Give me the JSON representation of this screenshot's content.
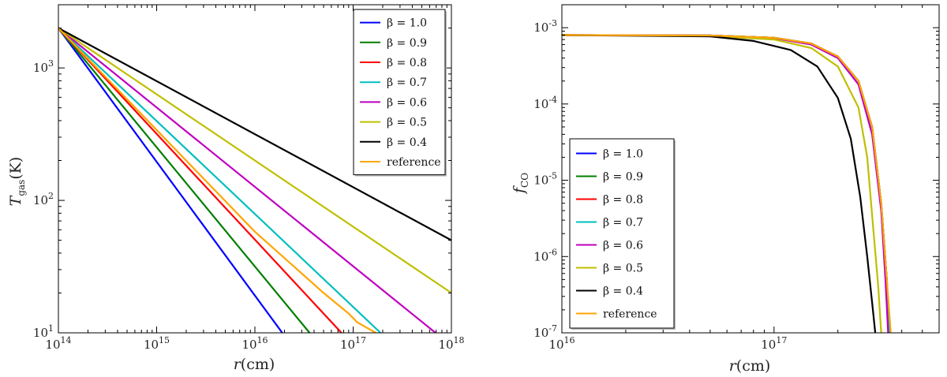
{
  "chart_data": [
    {
      "type": "line",
      "xlabel_main": "r",
      "xlabel_unit": "(cm)",
      "ylabel_main": "T",
      "ylabel_sub": "gas",
      "ylabel_unit": "(K)",
      "x_scale": "log",
      "y_scale": "log",
      "xlim": [
        100000000000000.0,
        1e+18
      ],
      "ylim": [
        10,
        3000
      ],
      "x_ticks": [
        {
          "value": 100000000000000.0,
          "base": "10",
          "exp": "14"
        },
        {
          "value": 1000000000000000.0,
          "base": "10",
          "exp": "15"
        },
        {
          "value": 1e+16,
          "base": "10",
          "exp": "16"
        },
        {
          "value": 1e+17,
          "base": "10",
          "exp": "17"
        },
        {
          "value": 1e+18,
          "base": "10",
          "exp": "18"
        }
      ],
      "y_ticks": [
        {
          "value": 10,
          "base": "10",
          "exp": "1"
        },
        {
          "value": 100,
          "base": "10",
          "exp": "2"
        },
        {
          "value": 1000,
          "base": "10",
          "exp": "3"
        }
      ],
      "grid": false,
      "legend_position": "top-right",
      "series": [
        {
          "name": "β = 1.0",
          "color": "#0000ff",
          "x": [
            100000000000000.0,
            1.9e+16
          ],
          "y": [
            2000,
            10
          ]
        },
        {
          "name": "β = 0.9",
          "color": "#007f00",
          "x": [
            100000000000000.0,
            3.6e+16
          ],
          "y": [
            2000,
            10
          ]
        },
        {
          "name": "β = 0.8",
          "color": "#ff0000",
          "x": [
            100000000000000.0,
            7.6e+16
          ],
          "y": [
            2000,
            10
          ]
        },
        {
          "name": "β = 0.7",
          "color": "#00bfbf",
          "x": [
            100000000000000.0,
            1.9e+17
          ],
          "y": [
            2000,
            10
          ]
        },
        {
          "name": "β = 0.6",
          "color": "#bf00bf",
          "x": [
            100000000000000.0,
            6.9e+17
          ],
          "y": [
            2000,
            10
          ]
        },
        {
          "name": "β = 0.5",
          "color": "#bfbf00",
          "x": [
            100000000000000.0,
            1e+18
          ],
          "y": [
            2000,
            20
          ]
        },
        {
          "name": "β = 0.4",
          "color": "#000000",
          "x": [
            100000000000000.0,
            1e+18
          ],
          "y": [
            2000,
            50
          ]
        },
        {
          "name": "reference",
          "color": "#ffa500",
          "x": [
            100000000000000.0,
            1000000000000000.0,
            1e+16,
            5e+16,
            9e+16,
            1.1e+17,
            1.7e+17
          ],
          "y": [
            2000,
            340,
            58,
            20,
            14,
            12,
            10
          ]
        }
      ]
    },
    {
      "type": "line",
      "xlabel_main": "r",
      "xlabel_unit": "(cm)",
      "ylabel_main": "f",
      "ylabel_sub": "CO",
      "x_scale": "log",
      "y_scale": "log",
      "xlim": [
        1e+16,
        6e+17
      ],
      "ylim": [
        1e-07,
        0.002
      ],
      "x_ticks": [
        {
          "value": 1e+16,
          "base": "10",
          "exp": "16"
        },
        {
          "value": 1e+17,
          "base": "10",
          "exp": "17"
        }
      ],
      "y_ticks": [
        {
          "value": 1e-07,
          "base": "10",
          "exp": "-7"
        },
        {
          "value": 1e-06,
          "base": "10",
          "exp": "-6"
        },
        {
          "value": 1e-05,
          "base": "10",
          "exp": "-5"
        },
        {
          "value": 0.0001,
          "base": "10",
          "exp": "-4"
        },
        {
          "value": 0.001,
          "base": "10",
          "exp": "-3"
        }
      ],
      "grid": false,
      "legend_position": "bottom-left",
      "series": [
        {
          "name": "β = 1.0",
          "color": "#0000ff",
          "x": [
            1e+16,
            5e+16,
            1e+17,
            1.5e+17,
            2e+17,
            2.5e+17,
            2.9e+17,
            3.2e+17,
            3.4e+17,
            3.5e+17
          ],
          "y": [
            0.0008,
            0.00079,
            0.00074,
            0.00062,
            0.00042,
            0.0002,
            5e-05,
            5e-06,
            5e-07,
            1e-07
          ]
        },
        {
          "name": "β = 0.9",
          "color": "#007f00",
          "x": [
            1e+16,
            5e+16,
            1e+17,
            1.5e+17,
            2e+17,
            2.5e+17,
            2.9e+17,
            3.2e+17,
            3.4e+17,
            3.5e+17
          ],
          "y": [
            0.0008,
            0.00079,
            0.00074,
            0.00062,
            0.00042,
            0.0002,
            5e-05,
            5e-06,
            5e-07,
            1e-07
          ]
        },
        {
          "name": "β = 0.8",
          "color": "#ff0000",
          "x": [
            1e+16,
            5e+16,
            1e+17,
            1.5e+17,
            2e+17,
            2.5e+17,
            2.9e+17,
            3.2e+17,
            3.4e+17,
            3.5e+17
          ],
          "y": [
            0.0008,
            0.00079,
            0.00074,
            0.00062,
            0.00042,
            0.0002,
            5e-05,
            5e-06,
            5e-07,
            1e-07
          ]
        },
        {
          "name": "β = 0.7",
          "color": "#00bfbf",
          "x": [
            1e+16,
            5e+16,
            1e+17,
            1.5e+17,
            2e+17,
            2.5e+17,
            2.9e+17,
            3.2e+17,
            3.4e+17,
            3.5e+17
          ],
          "y": [
            0.0008,
            0.00079,
            0.00074,
            0.00062,
            0.00042,
            0.0002,
            5e-05,
            5e-06,
            5e-07,
            1e-07
          ]
        },
        {
          "name": "β = 0.6",
          "color": "#bf00bf",
          "x": [
            1e+16,
            5e+16,
            1e+17,
            1.5e+17,
            2e+17,
            2.5e+17,
            2.9e+17,
            3.2e+17,
            3.35e+17,
            3.45e+17
          ],
          "y": [
            0.0008,
            0.00079,
            0.00073,
            0.0006,
            0.0004,
            0.00018,
            4e-05,
            4e-06,
            5e-07,
            1e-07
          ]
        },
        {
          "name": "β = 0.5",
          "color": "#bfbf00",
          "x": [
            1e+16,
            5e+16,
            1e+17,
            1.5e+17,
            2e+17,
            2.5e+17,
            2.75e+17,
            2.95e+17,
            3.1e+17,
            3.2e+17
          ],
          "y": [
            0.0008,
            0.00078,
            0.0007,
            0.00054,
            0.00031,
            9e-05,
            2e-05,
            2e-06,
            4e-07,
            1e-07
          ]
        },
        {
          "name": "β = 0.4",
          "color": "#000000",
          "x": [
            1e+16,
            5e+16,
            8e+16,
            1.2e+17,
            1.6e+17,
            2e+17,
            2.3e+17,
            2.55e+17,
            2.75e+17,
            2.9e+17,
            3e+17
          ],
          "y": [
            0.0008,
            0.00077,
            0.00067,
            0.00051,
            0.00031,
            0.00012,
            3.5e-05,
            6e-06,
            1e-06,
            2.5e-07,
            1e-07
          ]
        },
        {
          "name": "reference",
          "color": "#ffa500",
          "x": [
            1e+16,
            5e+16,
            1e+17,
            1.5e+17,
            2e+17,
            2.5e+17,
            2.9e+17,
            3.2e+17,
            3.4e+17,
            3.55e+17
          ],
          "y": [
            0.0008,
            0.00079,
            0.00074,
            0.00062,
            0.00042,
            0.0002,
            5e-05,
            5e-06,
            5e-07,
            1e-07
          ]
        }
      ]
    }
  ]
}
